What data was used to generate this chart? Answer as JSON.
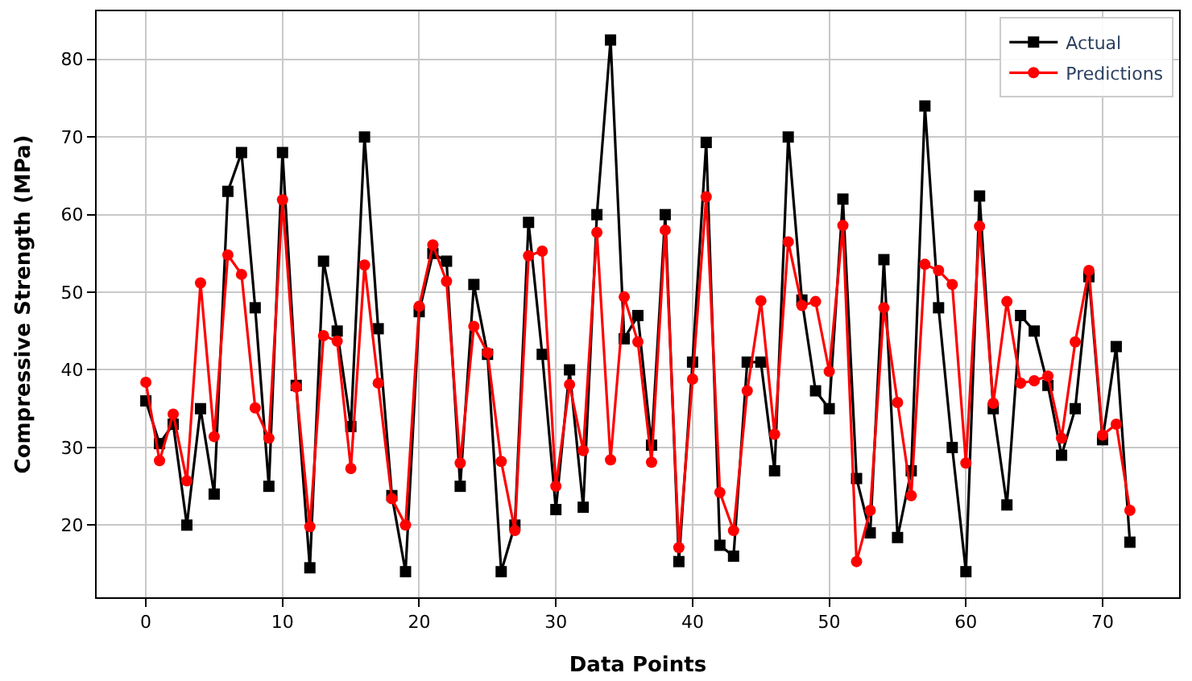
{
  "chart_data": {
    "type": "line",
    "xlabel": "Data Points",
    "ylabel": "Compressive Strength (MPa)",
    "x": [
      0,
      1,
      2,
      3,
      4,
      5,
      6,
      7,
      8,
      9,
      10,
      11,
      12,
      13,
      14,
      15,
      16,
      17,
      18,
      19,
      20,
      21,
      22,
      23,
      24,
      25,
      26,
      27,
      28,
      29,
      30,
      31,
      32,
      33,
      34,
      35,
      36,
      37,
      38,
      39,
      40,
      41,
      42,
      43,
      44,
      45,
      46,
      47,
      48,
      49,
      50,
      51,
      52,
      53,
      54,
      55,
      56,
      57,
      58,
      59,
      60,
      61,
      62,
      63,
      64,
      65,
      66,
      67,
      68,
      69,
      70,
      71,
      72
    ],
    "series": [
      {
        "name": "Actual",
        "color": "#000000",
        "marker": "square",
        "values": [
          36,
          30.5,
          33,
          20,
          35,
          24,
          63,
          68,
          48,
          25,
          68,
          38,
          14.5,
          54,
          45,
          32.7,
          70,
          45.3,
          23.8,
          14,
          47.5,
          55,
          54,
          25,
          51,
          42,
          14,
          20,
          59,
          42,
          22,
          40,
          22.3,
          60,
          82.5,
          44,
          47,
          30.3,
          60,
          15.3,
          41,
          69.3,
          17.4,
          16,
          41,
          41,
          27,
          70,
          49,
          37.3,
          35,
          62,
          26,
          19,
          54.2,
          18.4,
          27,
          74,
          48,
          30,
          14,
          62.4,
          35,
          22.6,
          47,
          45,
          38,
          29,
          35,
          52,
          31,
          43,
          17.8
        ]
      },
      {
        "name": "Predictions",
        "color": "#ff0000",
        "marker": "circle",
        "values": [
          38.4,
          28.3,
          34.3,
          25.7,
          51.2,
          31.4,
          54.8,
          52.3,
          35.1,
          31.2,
          61.9,
          37.8,
          19.8,
          44.4,
          43.7,
          27.3,
          53.5,
          38.3,
          23.4,
          20,
          48.2,
          56.1,
          51.4,
          28,
          45.6,
          42.2,
          28.2,
          19.3,
          54.7,
          55.3,
          25,
          38.1,
          29.6,
          57.7,
          28.4,
          49.4,
          43.6,
          28.1,
          58,
          17.1,
          38.8,
          62.3,
          24.2,
          19.3,
          37.3,
          48.9,
          31.7,
          56.5,
          48.3,
          48.8,
          39.8,
          58.6,
          15.3,
          21.9,
          48,
          35.8,
          23.8,
          53.6,
          52.8,
          51,
          28,
          58.5,
          35.7,
          48.8,
          38.3,
          38.6,
          39.2,
          31.2,
          43.6,
          52.8,
          31.6,
          33,
          21.9
        ]
      }
    ],
    "xlim": [
      -3.6,
      75.6
    ],
    "xticks": [
      0,
      10,
      20,
      30,
      40,
      50,
      60,
      70
    ],
    "ylim": [
      10.7,
      86.2
    ],
    "yticks": [
      20,
      30,
      40,
      50,
      60,
      70,
      80
    ],
    "grid": true,
    "legend": "top right",
    "line_style": "solid"
  }
}
